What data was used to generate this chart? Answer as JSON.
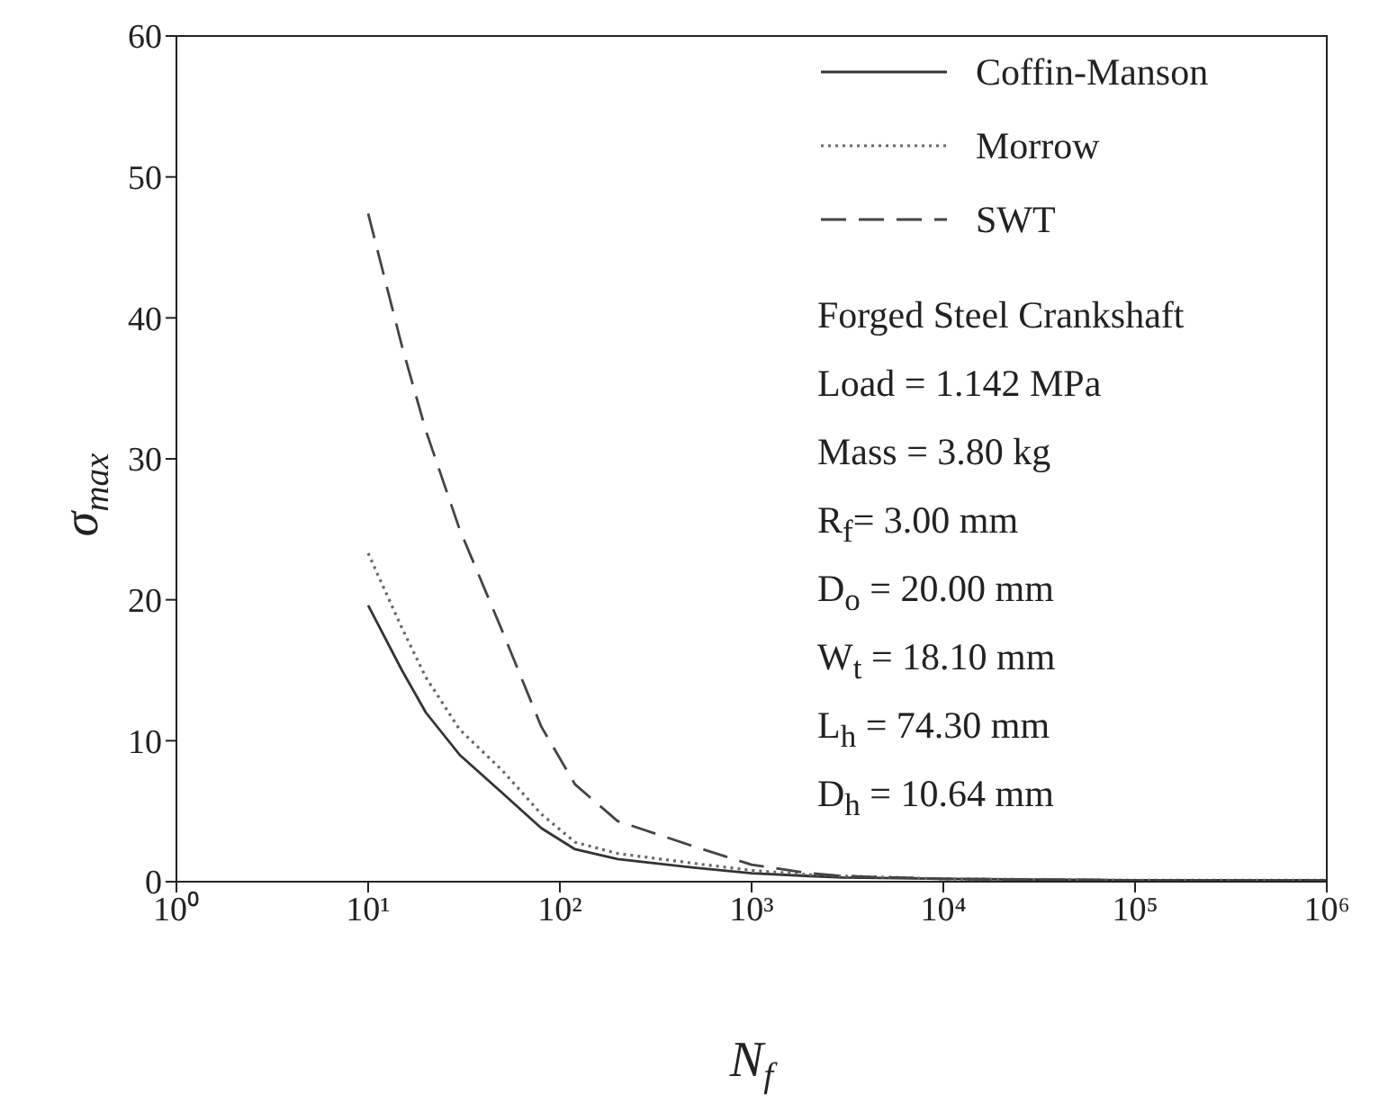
{
  "chart_data": {
    "type": "line",
    "xlabel": "N$_{f}$",
    "ylabel": "σ$_{max}$",
    "log": "x",
    "xlim": [
      1,
      1000000
    ],
    "xticks": [
      {
        "value": 1,
        "label": "10⁰"
      },
      {
        "value": 10,
        "label": "10¹"
      },
      {
        "value": 100,
        "label": "10²"
      },
      {
        "value": 1000,
        "label": "10³"
      },
      {
        "value": 10000,
        "label": "10⁴"
      },
      {
        "value": 100000,
        "label": "10⁵"
      },
      {
        "value": 1000000,
        "label": "10⁶"
      }
    ],
    "ylim": [
      0,
      60
    ],
    "yticks": [
      0,
      10,
      20,
      30,
      40,
      50,
      60
    ],
    "grid": false,
    "legend": "top right",
    "x": [
      10,
      15,
      20,
      30,
      50,
      80,
      120,
      200,
      500,
      1000,
      2000,
      3000,
      10000,
      100000,
      1000000
    ],
    "series": [
      {
        "name": "Coffin-Manson",
        "color": "#333333",
        "line_style": "solid",
        "values": [
          19.6,
          15,
          12,
          9,
          6.3,
          3.8,
          2.3,
          1.6,
          1.0,
          0.6,
          0.4,
          0.3,
          0.2,
          0.1,
          0.1
        ]
      },
      {
        "name": "Morrow",
        "color": "#666666",
        "line_style": "dotted",
        "values": [
          23.3,
          18,
          14.5,
          10.8,
          7.9,
          4.8,
          2.8,
          2.0,
          1.3,
          0.8,
          0.5,
          0.4,
          0.2,
          0.1,
          0.1
        ]
      },
      {
        "name": "SWT",
        "color": "#444444",
        "line_style": "dashed",
        "values": [
          47.4,
          38,
          32,
          25,
          17.8,
          11,
          6.9,
          4.3,
          2.5,
          1.2,
          0.6,
          0.4,
          0.2,
          0.1,
          0.1
        ]
      }
    ],
    "annotations": [
      "Forged Steel Crankshaft",
      "Load = 1.142 MPa",
      "Mass = 3.80 kg",
      "R$_{f}$= 3.00 mm",
      "D$_{o}$ = 20.00 mm",
      "W$_{t}$ = 18.10 mm",
      "L$_{h}$ = 74.30 mm",
      "D$_{h}$ = 10.64 mm"
    ]
  }
}
